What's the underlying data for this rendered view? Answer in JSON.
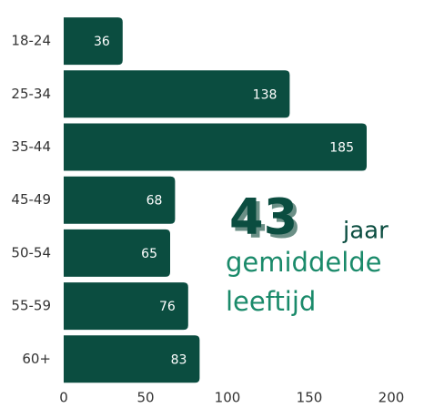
{
  "chart_data": {
    "type": "hbar",
    "categories": [
      "18-24",
      "25-34",
      "35-44",
      "45-49",
      "50-54",
      "55-59",
      "60+"
    ],
    "values": [
      36,
      138,
      185,
      68,
      65,
      76,
      83
    ],
    "color": "#0b4d40",
    "xlim": [
      0,
      200
    ],
    "xticks": [
      0,
      50,
      100,
      150,
      200
    ],
    "annotation": {
      "number": "43",
      "unit": "jaar",
      "line1": "gemiddelde",
      "line2": "leeftijd",
      "number_color": "#0b4d40",
      "text_color": "#1a8a6a"
    }
  }
}
